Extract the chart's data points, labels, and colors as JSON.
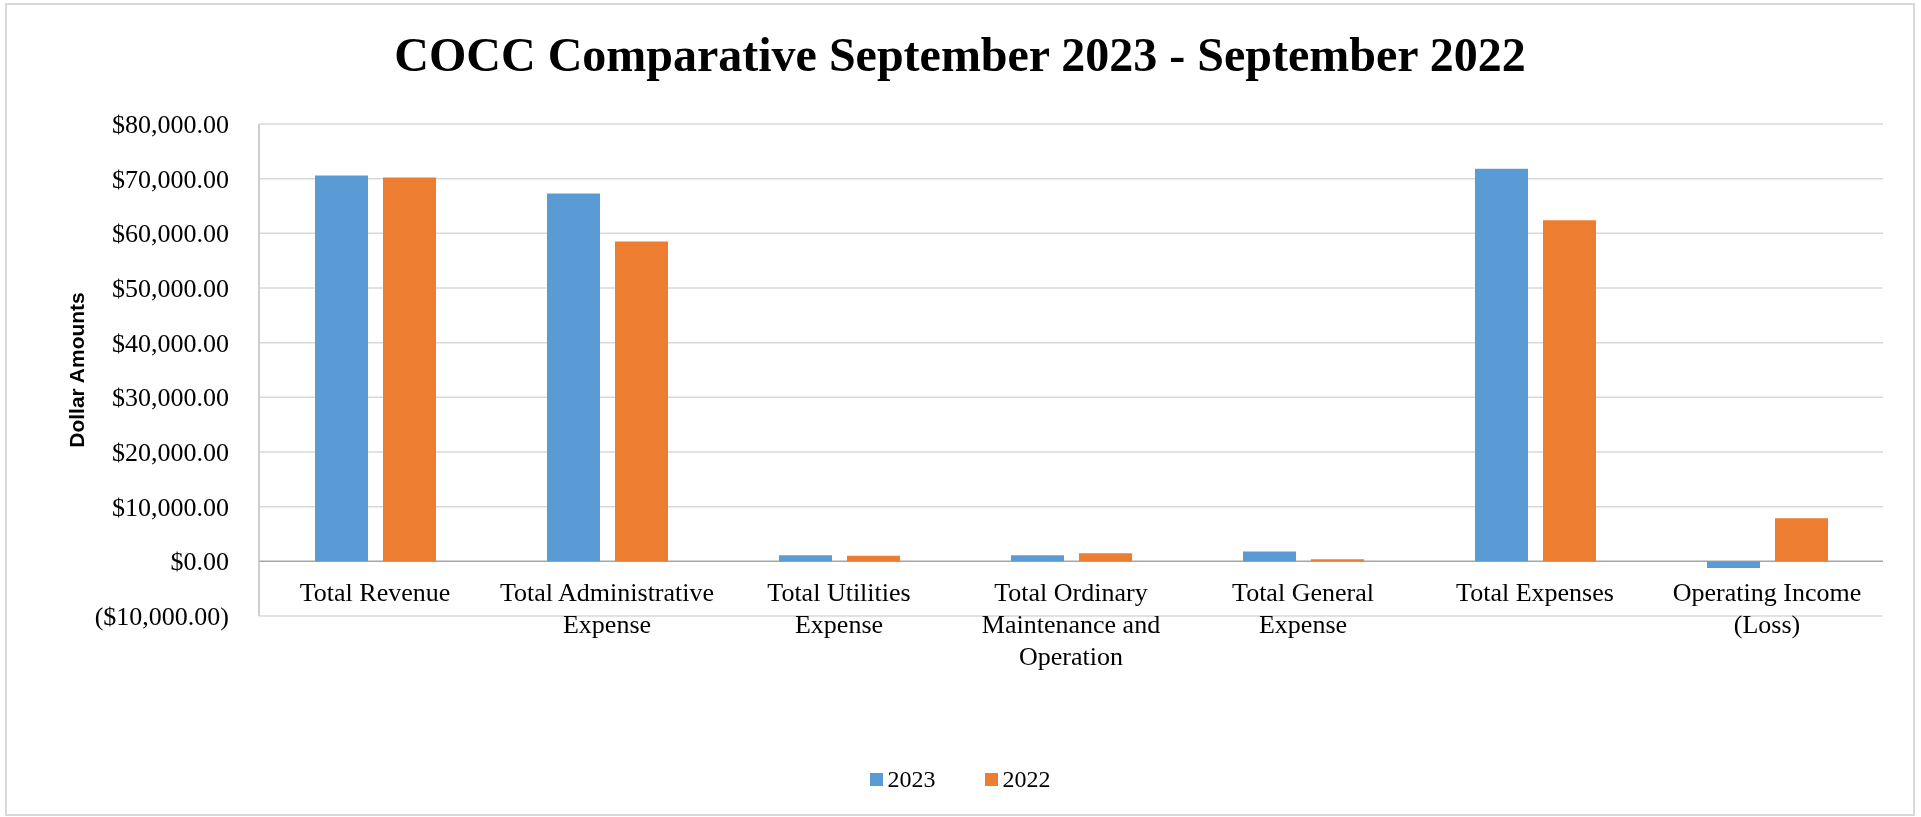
{
  "chart_data": {
    "type": "bar",
    "title": "COCC Comparative September 2023 - September 2022",
    "ylabel": "Dollar Amounts",
    "categories": [
      "Total Revenue",
      "Total Administrative Expense",
      "Total Utilities Expense",
      "Total Ordinary Maintenance and Operation",
      "Total General Expense",
      "Total Expenses",
      "Operating Income (Loss)"
    ],
    "series": [
      {
        "name": "2023",
        "color": "#5b9bd5",
        "values": [
          70600,
          67300,
          1100,
          1100,
          1800,
          71800,
          -1200
        ]
      },
      {
        "name": "2022",
        "color": "#ed7d31",
        "values": [
          70200,
          58500,
          1000,
          1500,
          400,
          62400,
          7900
        ]
      }
    ],
    "ylim": [
      -10000,
      80000
    ],
    "yticks": [
      {
        "value": -10000,
        "label": "($10,000.00)"
      },
      {
        "value": 0,
        "label": "$0.00"
      },
      {
        "value": 10000,
        "label": "$10,000.00"
      },
      {
        "value": 20000,
        "label": "$20,000.00"
      },
      {
        "value": 30000,
        "label": "$30,000.00"
      },
      {
        "value": 40000,
        "label": "$40,000.00"
      },
      {
        "value": 50000,
        "label": "$50,000.00"
      },
      {
        "value": 60000,
        "label": "$60,000.00"
      },
      {
        "value": 70000,
        "label": "$70,000.00"
      },
      {
        "value": 80000,
        "label": "$80,000.00"
      }
    ],
    "grid": "y",
    "legend": "bottom"
  }
}
